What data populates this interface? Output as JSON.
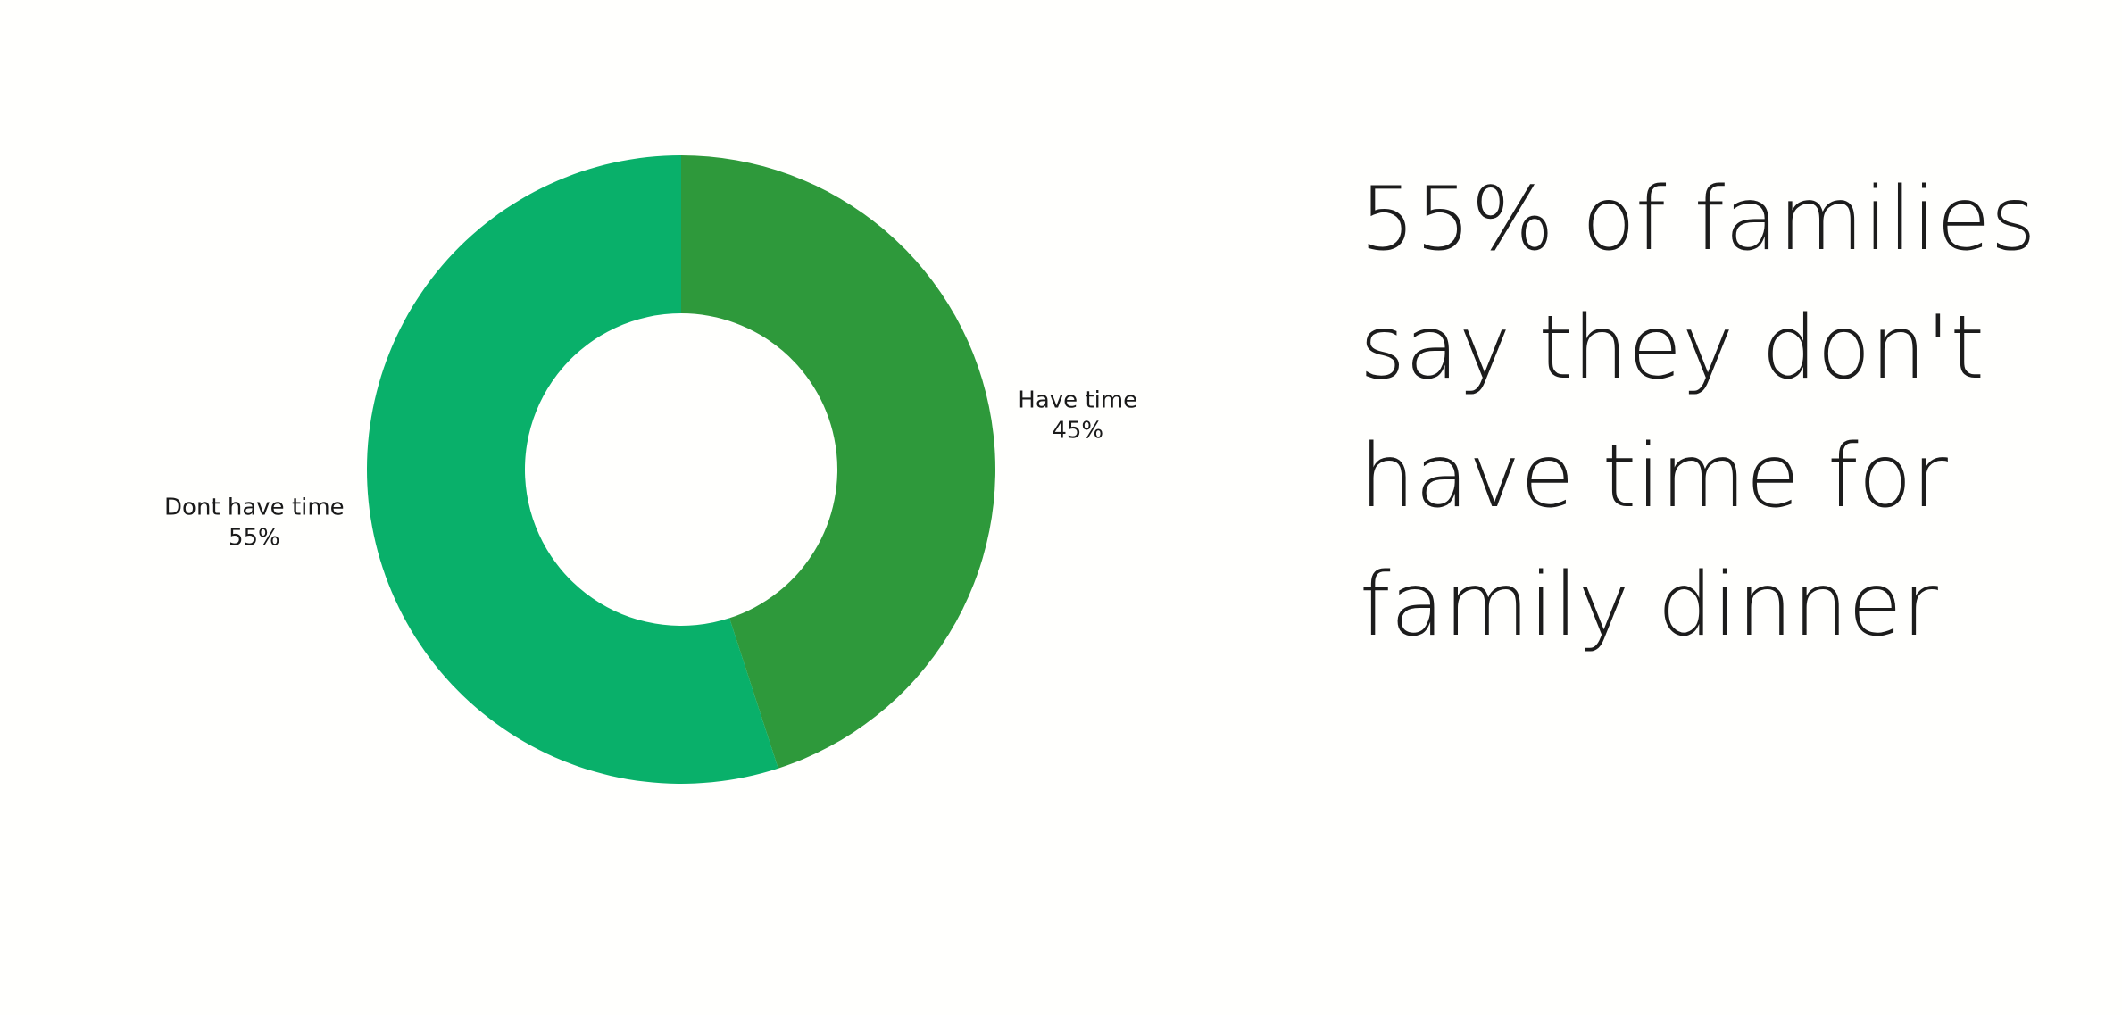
{
  "chart_data": {
    "type": "donut",
    "categories": [
      "Have time",
      "Dont have time"
    ],
    "values": [
      45,
      55
    ],
    "value_labels": [
      "45%",
      "55%"
    ],
    "colors": [
      "#2e993b",
      "#09b06a"
    ]
  },
  "headline": {
    "lines": [
      "55% of families",
      "say they don't",
      "have time for",
      "family dinner"
    ]
  }
}
